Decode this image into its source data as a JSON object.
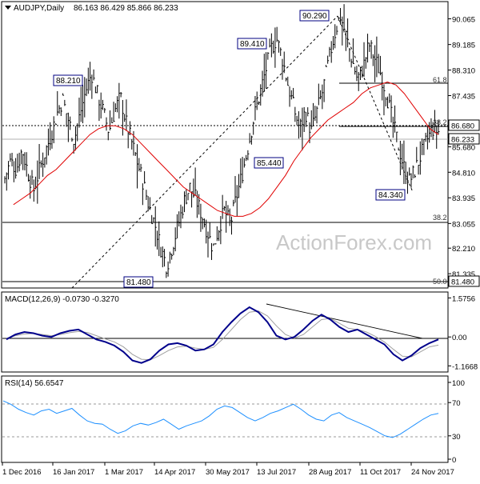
{
  "header": {
    "title": "AUDJPY,Daily",
    "ohlc": "86.163 86.429 85.866 86.233"
  },
  "watermark": "ActionForex.com",
  "colors": {
    "price_bars": "#000000",
    "ma": "#e00000",
    "macd_main": "#00008b",
    "macd_signal": "#a0a0a0",
    "rsi": "#1e90ff",
    "grid": "#000000",
    "box_border": "#000080"
  },
  "chart_data": [
    {
      "type": "ohlc",
      "title": "AUDJPY,Daily",
      "x_tick_labels": [
        "1 Dec 2016",
        "16 Jan 2017",
        "1 Mar 2017",
        "14 Apr 2017",
        "30 May 2017",
        "13 Jul 2017",
        "28 Aug 2017",
        "11 Oct 2017",
        "24 Nov 2017"
      ],
      "y_tick_labels": [
        "90.065",
        "89.185",
        "88.310",
        "87.435",
        "85.680",
        "84.810",
        "83.935",
        "83.055",
        "82.210",
        "81.335"
      ],
      "ylim": [
        80.9,
        90.6
      ],
      "last_price": "86.233",
      "price_markers": [
        {
          "label": "88.210",
          "value": 88.21
        },
        {
          "label": "89.410",
          "value": 89.41
        },
        {
          "label": "90.290",
          "value": 90.29
        },
        {
          "label": "85.440",
          "value": 85.44
        },
        {
          "label": "84.340",
          "value": 84.34
        },
        {
          "label": "81.480",
          "value": 81.48
        }
      ],
      "levels": [
        {
          "label": "86.680",
          "value": 86.68,
          "fib": "38.2"
        },
        {
          "label": "81.480",
          "value": 81.48,
          "fib": "50.0"
        }
      ],
      "fib_levels": [
        {
          "label": "61.8",
          "value": 88.0
        },
        {
          "label": "38.2",
          "value": 86.75
        },
        {
          "label": "38.2",
          "value": 83.5
        },
        {
          "label": "50.0",
          "value": 81.48
        }
      ],
      "close_series": [
        84.6,
        85.2,
        84.9,
        85.6,
        84.8,
        84.2,
        84.9,
        85.5,
        86.1,
        86.8,
        87.3,
        86.6,
        85.9,
        86.8,
        87.6,
        88.2,
        87.5,
        86.9,
        86.2,
        86.9,
        87.4,
        86.5,
        85.8,
        85.1,
        84.4,
        83.6,
        83.0,
        82.2,
        81.6,
        82.3,
        83.0,
        83.8,
        84.3,
        83.9,
        83.4,
        82.8,
        82.2,
        82.9,
        83.5,
        83.0,
        83.9,
        84.7,
        85.6,
        86.6,
        87.4,
        88.2,
        89.0,
        89.4,
        88.7,
        87.8,
        87.0,
        86.3,
        86.9,
        86.2,
        86.9,
        87.6,
        88.6,
        89.5,
        90.2,
        89.5,
        88.7,
        88.0,
        88.4,
        89.2,
        88.7,
        88.2,
        87.5,
        86.6,
        85.8,
        85.0,
        84.5,
        84.9,
        85.4,
        85.9,
        86.3,
        86.2
      ],
      "ma_series": [
        83.7,
        83.9,
        84.1,
        84.4,
        84.7,
        84.9,
        85.2,
        85.5,
        85.8,
        86.1,
        86.3,
        86.4,
        86.4,
        86.3,
        86.1,
        85.8,
        85.5,
        85.2,
        84.9,
        84.6,
        84.3,
        84.1,
        83.9,
        83.7,
        83.5,
        83.4,
        83.3,
        83.3,
        83.4,
        83.6,
        83.9,
        84.3,
        84.7,
        85.2,
        85.6,
        86.0,
        86.3,
        86.6,
        86.8,
        87.0,
        87.2,
        87.5,
        87.7,
        87.8,
        87.9,
        87.8,
        87.5,
        87.1,
        86.7,
        86.3,
        86.1
      ]
    },
    {
      "type": "line",
      "title": "MACD(12,26,9) -0.0730 -0.3270",
      "y_tick_labels": [
        "1.5756",
        "0.00",
        "-1.1668"
      ],
      "ylim": [
        -1.35,
        1.75
      ],
      "series": [
        {
          "values": [
            -0.1,
            0.1,
            0.2,
            0.15,
            0.05,
            0.0,
            0.15,
            0.25,
            0.3,
            0.1,
            -0.1,
            -0.2,
            -0.35,
            -0.6,
            -0.95,
            -1.05,
            -0.9,
            -0.55,
            -0.3,
            -0.25,
            -0.35,
            -0.55,
            -0.5,
            -0.3,
            0.2,
            0.6,
            0.95,
            1.2,
            1.0,
            0.6,
            0.05,
            -0.1,
            0.0,
            0.3,
            0.65,
            0.9,
            0.7,
            0.4,
            0.2,
            0.3,
            0.1,
            -0.1,
            -0.3,
            -0.7,
            -0.95,
            -0.75,
            -0.45,
            -0.25,
            -0.1
          ]
        },
        {
          "values": [
            -0.05,
            0.05,
            0.12,
            0.14,
            0.1,
            0.05,
            0.1,
            0.17,
            0.22,
            0.18,
            0.05,
            -0.08,
            -0.2,
            -0.4,
            -0.7,
            -0.9,
            -0.92,
            -0.75,
            -0.55,
            -0.4,
            -0.37,
            -0.45,
            -0.5,
            -0.42,
            -0.1,
            0.3,
            0.7,
            1.0,
            1.05,
            0.85,
            0.45,
            0.1,
            -0.05,
            0.1,
            0.4,
            0.7,
            0.75,
            0.55,
            0.35,
            0.3,
            0.2,
            0.02,
            -0.2,
            -0.5,
            -0.78,
            -0.8,
            -0.6,
            -0.4,
            -0.33
          ]
        }
      ]
    },
    {
      "type": "line",
      "title": "RSI(14) 56.6547",
      "y_tick_labels": [
        "100",
        "70",
        "30",
        "0"
      ],
      "ylim": [
        0,
        100
      ],
      "series": [
        {
          "values": [
            72,
            68,
            62,
            58,
            55,
            60,
            62,
            57,
            60,
            63,
            55,
            48,
            45,
            44,
            38,
            33,
            36,
            42,
            45,
            43,
            46,
            50,
            44,
            38,
            42,
            45,
            48,
            54,
            62,
            66,
            64,
            58,
            52,
            48,
            52,
            57,
            60,
            64,
            68,
            62,
            55,
            50,
            48,
            55,
            58,
            52,
            48,
            44,
            40,
            35,
            30,
            28,
            32,
            38,
            44,
            50,
            55,
            57
          ]
        }
      ]
    }
  ]
}
